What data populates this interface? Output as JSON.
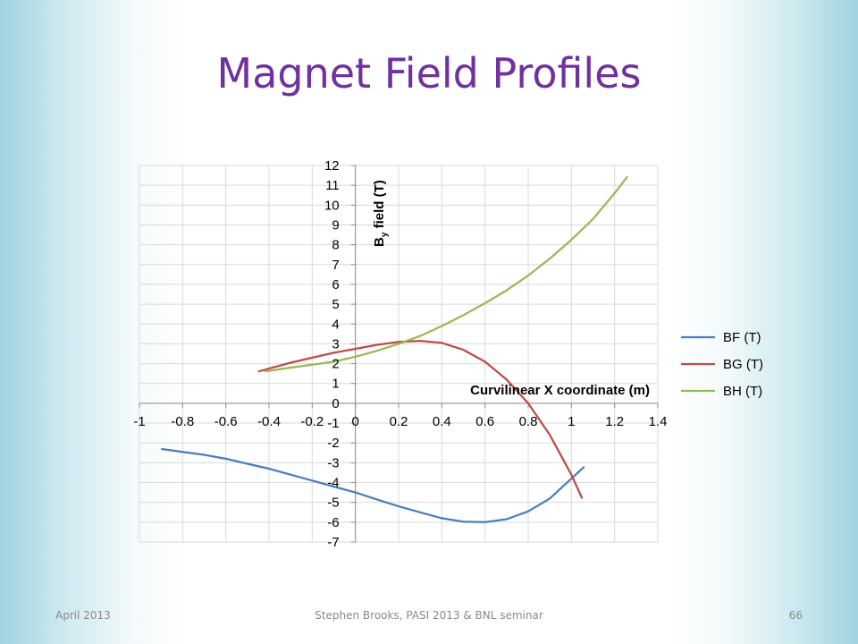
{
  "slide": {
    "title": "Magnet Field Profiles",
    "footer_left": "April 2013",
    "footer_center": "Stephen Brooks, PASI 2013 & BNL seminar",
    "footer_right": "66"
  },
  "chart_data": {
    "type": "line",
    "title": "",
    "xlabel": "Curvilinear X coordinate (m)",
    "ylabel": "By field (T)",
    "ylabel_main": "B",
    "ylabel_sub": "y",
    "ylabel_rest": " field (T)",
    "xlim": [
      -1,
      1.4
    ],
    "ylim": [
      -7,
      12
    ],
    "x_ticks": [
      -1,
      -0.8,
      -0.6,
      -0.4,
      -0.2,
      0,
      0.2,
      0.4,
      0.6,
      0.8,
      1,
      1.2,
      1.4
    ],
    "y_ticks": [
      -7,
      -6,
      -5,
      -4,
      -3,
      -2,
      -1,
      0,
      1,
      2,
      3,
      4,
      5,
      6,
      7,
      8,
      9,
      10,
      11,
      12
    ],
    "x_tick_labels": [
      "-1",
      "-0.8",
      "-0.6",
      "-0.4",
      "-0.2",
      "0",
      "0.2",
      "0.4",
      "0.6",
      "0.8",
      "1",
      "1.2",
      "1.4"
    ],
    "y_tick_labels": [
      "-7",
      "-6",
      "-5",
      "-4",
      "-3",
      "-2",
      "-1",
      "0",
      "1",
      "2",
      "3",
      "4",
      "5",
      "6",
      "7",
      "8",
      "9",
      "10",
      "11",
      "12"
    ],
    "grid": true,
    "legend_position": "right",
    "series": [
      {
        "name": "BF (T)",
        "color": "#4a7ebb",
        "x": [
          -0.9,
          -0.8,
          -0.7,
          -0.6,
          -0.5,
          -0.4,
          -0.3,
          -0.2,
          -0.1,
          0.0,
          0.1,
          0.2,
          0.3,
          0.4,
          0.5,
          0.6,
          0.7,
          0.8,
          0.9,
          1.0,
          1.06
        ],
        "y": [
          -2.3,
          -2.45,
          -2.6,
          -2.8,
          -3.05,
          -3.3,
          -3.6,
          -3.9,
          -4.2,
          -4.5,
          -4.85,
          -5.2,
          -5.5,
          -5.8,
          -5.97,
          -6.0,
          -5.85,
          -5.45,
          -4.8,
          -3.8,
          -3.2
        ]
      },
      {
        "name": "BG (T)",
        "color": "#be4b48",
        "x": [
          -0.45,
          -0.4,
          -0.3,
          -0.2,
          -0.1,
          0.0,
          0.1,
          0.2,
          0.3,
          0.4,
          0.5,
          0.6,
          0.7,
          0.8,
          0.9,
          1.0,
          1.05
        ],
        "y": [
          1.6,
          1.75,
          2.05,
          2.3,
          2.55,
          2.75,
          2.95,
          3.1,
          3.15,
          3.05,
          2.7,
          2.1,
          1.2,
          0.0,
          -1.6,
          -3.6,
          -4.8
        ]
      },
      {
        "name": "BH (T)",
        "color": "#98b954",
        "x": [
          -0.42,
          -0.3,
          -0.2,
          -0.1,
          0.0,
          0.1,
          0.2,
          0.3,
          0.4,
          0.5,
          0.6,
          0.7,
          0.8,
          0.9,
          1.0,
          1.1,
          1.2,
          1.26
        ],
        "y": [
          1.6,
          1.8,
          1.95,
          2.1,
          2.35,
          2.65,
          3.0,
          3.4,
          3.9,
          4.45,
          5.05,
          5.7,
          6.45,
          7.3,
          8.25,
          9.3,
          10.6,
          11.45
        ]
      }
    ]
  }
}
